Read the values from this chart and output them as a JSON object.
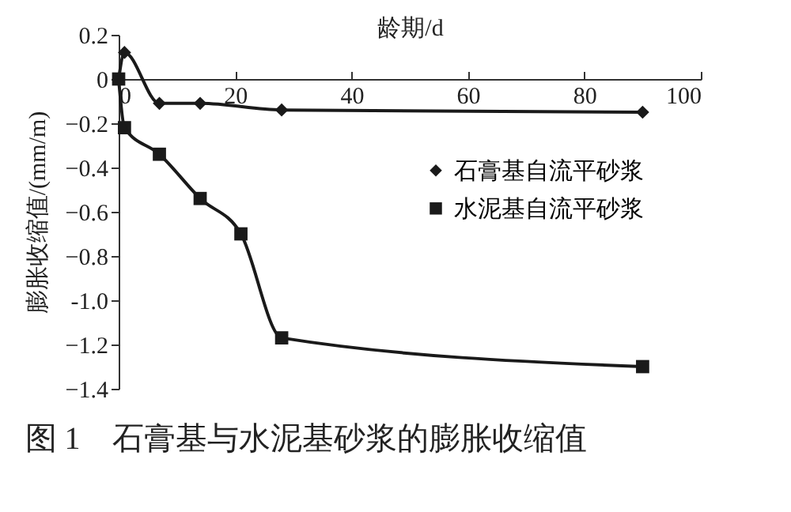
{
  "chart_data": {
    "type": "line",
    "xlabel": "龄期/d",
    "ylabel": "膨胀收缩值/(mm/m)",
    "annotations": [
      "图 1　石膏基与水泥基砂浆的膨胀收缩值"
    ],
    "xlim": [
      0,
      100
    ],
    "xticks": [
      0,
      20,
      40,
      60,
      80,
      100
    ],
    "ylim": [
      -1.4,
      0.2
    ],
    "yticks": [
      0.2,
      0,
      -0.2,
      -0.4,
      -0.6,
      -0.8,
      {
        "value": -1,
        "label": "-1.0"
      },
      -1.2,
      -1.4
    ],
    "legend": "right",
    "grid": false,
    "series": [
      {
        "name": "石膏基自流平砂浆",
        "color": "#1a1a1a",
        "marker": "diamond",
        "x": [
          0,
          1,
          7,
          14,
          28,
          90
        ],
        "values": [
          0,
          0.12,
          -0.11,
          -0.11,
          -0.14,
          -0.15
        ]
      },
      {
        "name": "水泥基自流平砂浆",
        "color": "#1a1a1a",
        "marker": "square",
        "x": [
          0,
          1,
          7,
          14,
          21,
          28,
          90
        ],
        "values": [
          0,
          -0.22,
          -0.34,
          -0.54,
          -0.7,
          -1.17,
          -1.3
        ]
      }
    ]
  }
}
